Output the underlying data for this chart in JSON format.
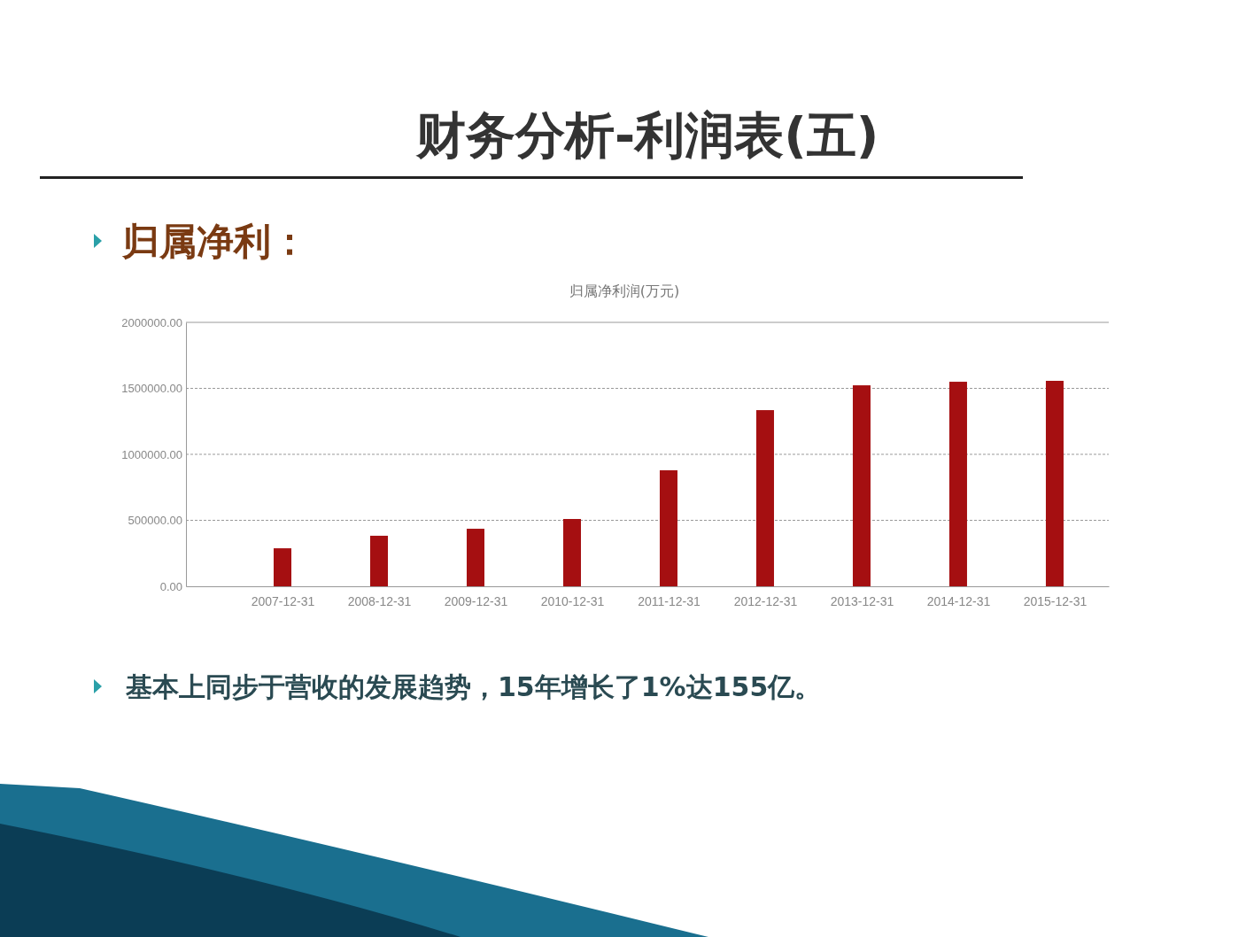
{
  "chart_data": {
    "type": "bar",
    "title": "财务分析-利润表(五)",
    "subtitle": "归属净利：",
    "annotations": [
      "归属净利润(万元)",
      "基本上同步于营收的发展趋势，15年增长了1%达155亿。"
    ],
    "categories": [
      "2007-12-31",
      "2008-12-31",
      "2009-12-31",
      "2010-12-31",
      "2011-12-31",
      "2012-12-31",
      "2013-12-31",
      "2014-12-31",
      "2015-12-31"
    ],
    "values": [
      288000,
      383000,
      436000,
      510000,
      879000,
      1335000,
      1523000,
      1550000,
      1557000
    ],
    "color": "#a50f11",
    "ylim": [
      0,
      2000000
    ],
    "yticks": [
      {
        "value": 0,
        "label": "0.00"
      },
      {
        "value": 500000,
        "label": "500000.00"
      },
      {
        "value": 1000000,
        "label": "1000000.00"
      },
      {
        "value": 1500000,
        "label": "1500000.00"
      },
      {
        "value": 2000000,
        "label": "2000000.00"
      }
    ],
    "grid": "y"
  }
}
